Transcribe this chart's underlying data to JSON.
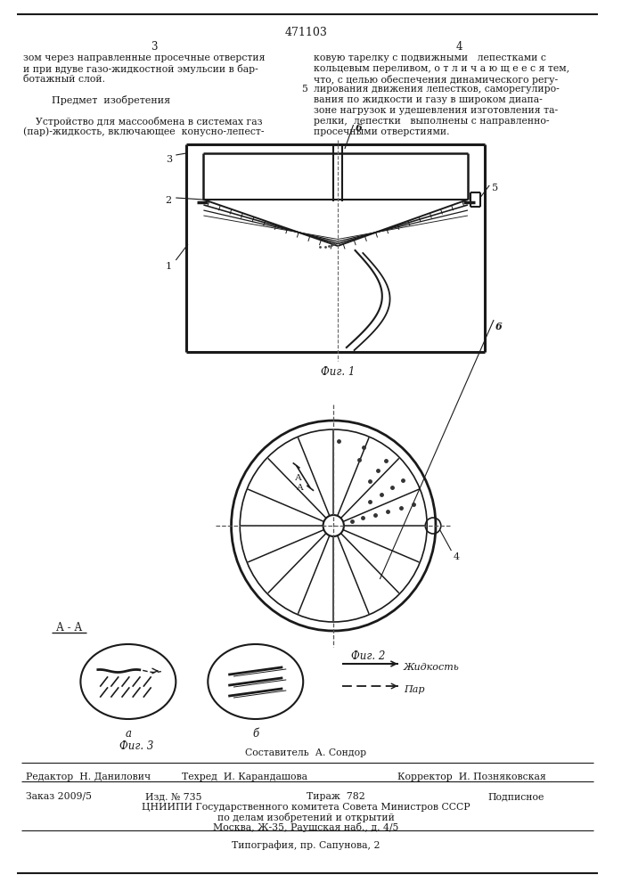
{
  "title": "471103",
  "page_col1": "3",
  "page_col2": "4",
  "text_col1_lines": [
    "зом через направленные просечные отверстия",
    "и при вдуве газо-жидкостной эмульсии в бар-",
    "ботажный слой.",
    "",
    "    Предмет  изобретения",
    "",
    "    Устройство для массообмена в системах газ",
    "(пар)-жидкость, включающее  конусно-лепест-"
  ],
  "text_col2_lines": [
    "ковую тарелку с подвижными   лепестками с",
    "кольцевым переливом, о т л и ч а ю щ е е с я тем,",
    "что, с целью обеспечения динамического регу-",
    "лирования движения лепестков, саморегулиро-",
    "вания по жидкости и газу в широком диапа-",
    "зоне нагрузок и удешевления изготовления та-",
    "релки,  лепестки   выполнены с направленно-",
    "просечными отверстиями."
  ],
  "fig1_label": "Фиг. 1",
  "fig2_label": "Фиг. 2",
  "fig3_label": "Фиг. 3",
  "aa_label": "А - А",
  "legend_liquid": "Жидкость",
  "legend_steam": "Пар",
  "legend_a": "а",
  "legend_b": "б",
  "footer_composer": "Составитель  А. Сондор",
  "footer_editor": "Редактор  Н. Данилович",
  "footer_tech": "Техред  И. Карандашова",
  "footer_corrector": "Корректор  И. Позняковская",
  "footer_order": "Заказ 2009/5",
  "footer_pub": "Изд. № 735",
  "footer_circ": "Тираж  782",
  "footer_sub": "Подписное",
  "footer_cniip": "ЦНИИПИ Государственного комитета Совета Министров СССР",
  "footer_cniip2": "по делам изобретений и открытий",
  "footer_cniip3": "Москва, Ж-35, Раушская наб., д. 4/5",
  "footer_typo": "Типография, пр. Сапунова, 2",
  "bg_color": "#ffffff",
  "line_color": "#1a1a1a"
}
